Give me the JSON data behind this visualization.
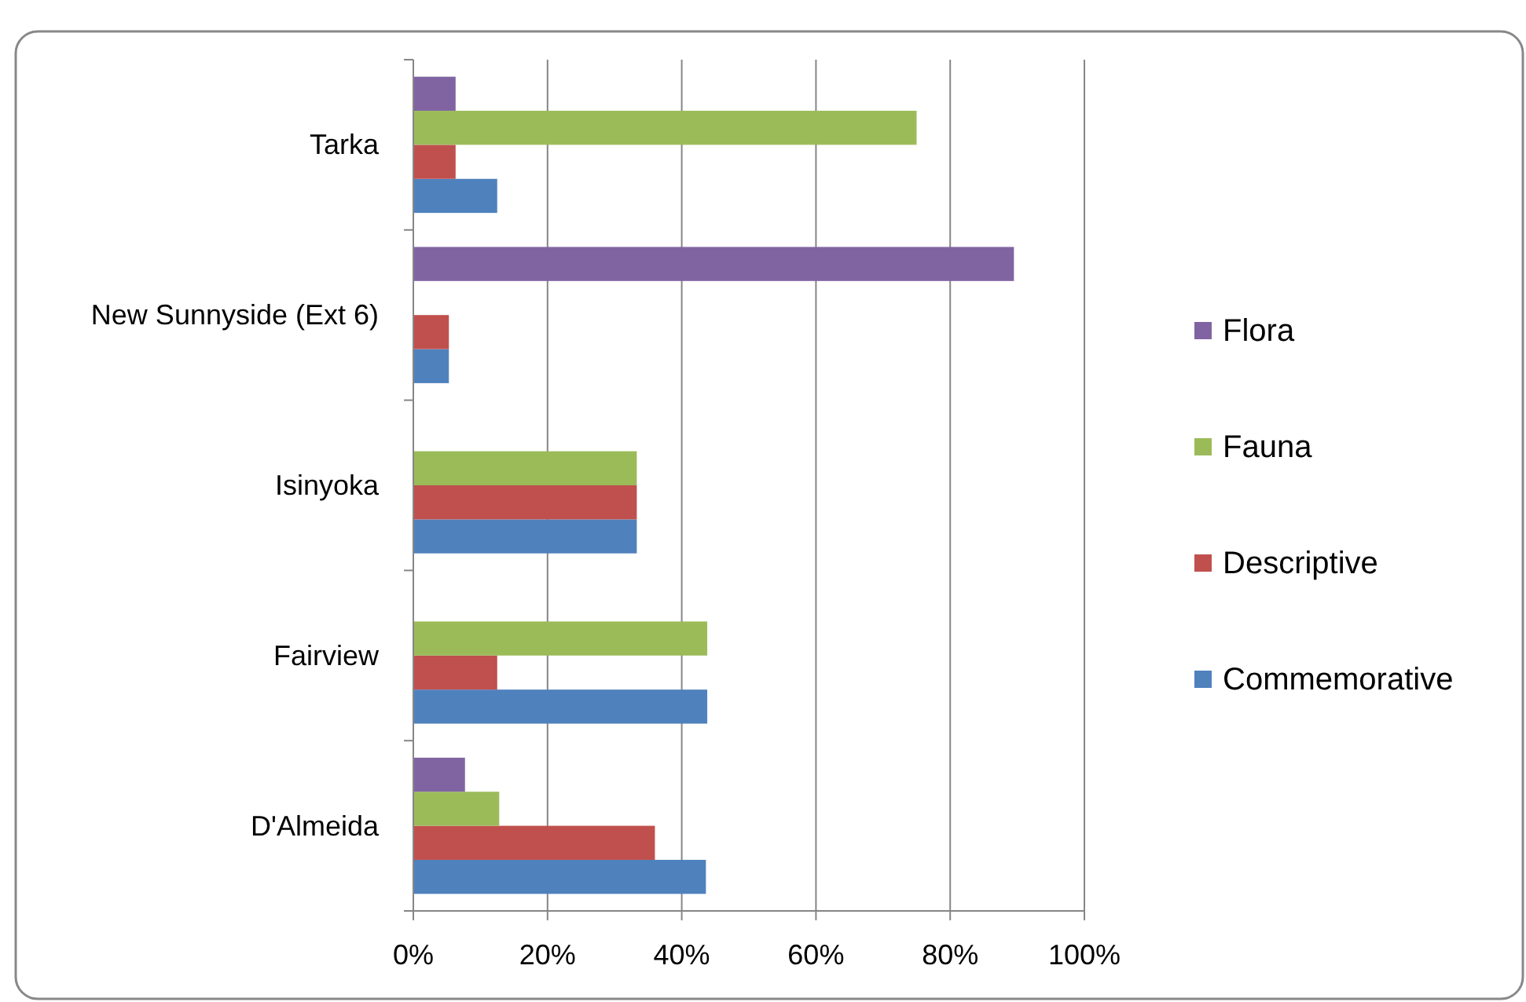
{
  "chart_data": {
    "type": "bar",
    "orientation": "horizontal",
    "categories": [
      "Tarka",
      "New Sunnyside (Ext 6)",
      "Isinyoka",
      "Fairview",
      "D'Almeida"
    ],
    "series": [
      {
        "name": "Commemorative",
        "color": "#4f81bd",
        "values": [
          12.5,
          5.3,
          33.3,
          43.8,
          43.6
        ]
      },
      {
        "name": "Descriptive",
        "color": "#c0504d",
        "values": [
          6.3,
          5.3,
          33.3,
          12.5,
          36
        ]
      },
      {
        "name": "Fauna",
        "color": "#9bbb59",
        "values": [
          75,
          0,
          33.3,
          43.8,
          12.8
        ]
      },
      {
        "name": "Flora",
        "color": "#8064a2",
        "values": [
          6.3,
          89.5,
          0,
          0,
          7.7
        ]
      }
    ],
    "xlim": [
      0,
      100
    ],
    "xticks": [
      {
        "value": 0,
        "label": "0%"
      },
      {
        "value": 20,
        "label": "20%"
      },
      {
        "value": 40,
        "label": "40%"
      },
      {
        "value": 60,
        "label": "60%"
      },
      {
        "value": 80,
        "label": "80%"
      },
      {
        "value": 100,
        "label": "100%"
      }
    ],
    "grid": "x",
    "legend": "right"
  }
}
